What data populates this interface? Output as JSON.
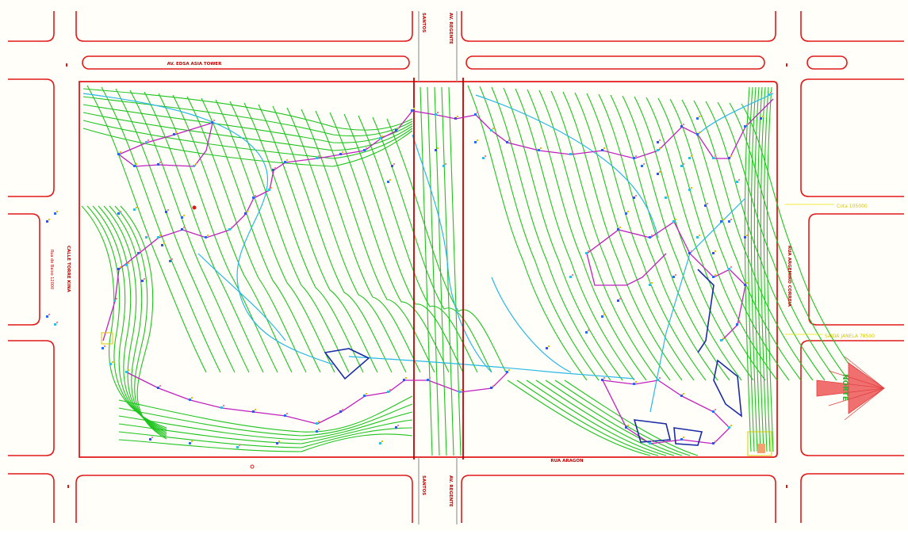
{
  "labels": {
    "top_avenue": "AV. EDSA ASIA TOWER",
    "top_cross_left": "SANTOS",
    "top_cross_right": "AV. REGENTE",
    "right_street": "RUA ARGEMIRO CORREIA",
    "right_annot_top": "Cota 105000",
    "right_annot_bottom": "SAIDA JANELA 78500",
    "bottom_street": "RUA ARAGON",
    "bottom_cross_left": "SANTOS",
    "bottom_cross_right": "AV. REGENTE",
    "left_street": "CALLE TORRE KINA",
    "left_sub": "Rua de Baixo 12000",
    "north": "NORTE"
  },
  "colors": {
    "road": "#e01818",
    "contour": "#1fc41f",
    "water": "#28b8e8",
    "boundary": "#c020c0",
    "building": "#1c2ca8",
    "annotation": "#e6e600",
    "section": "#c00000"
  }
}
